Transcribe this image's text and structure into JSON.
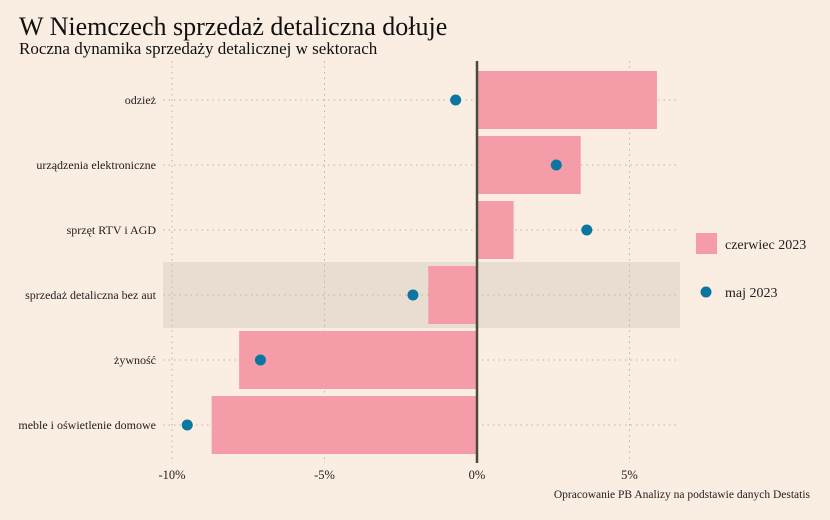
{
  "header": {
    "title": "W Niemczech sprzedaż detaliczna dołuje",
    "subtitle": "Roczna dynamika sprzedaży detalicznej w sektorach"
  },
  "source": "Opracowanie PB Analizy na podstawie danych Destatis",
  "colors": {
    "background": "#faede1",
    "bar": "#f59ca9",
    "dot": "#0b76a0",
    "highlight_band": "#e8ddd0",
    "zero_line": "#4a4a3f",
    "grid": "#bdb2a6"
  },
  "chart_data": {
    "type": "bar",
    "orientation": "horizontal",
    "title": "W Niemczech sprzedaż detaliczna dołuje",
    "subtitle": "Roczna dynamika sprzedaży detalicznej w sektorach",
    "categories": [
      "odzież",
      "urządzenia elektroniczne",
      "sprzęt RTV i AGD",
      "sprzedaż detaliczna bez aut",
      "żywność",
      "meble i oświetlenie domowe"
    ],
    "highlighted_category": "sprzedaż detaliczna bez aut",
    "series": [
      {
        "name": "czerwiec 2023",
        "mark": "bar",
        "values": [
          5.9,
          3.4,
          1.2,
          -1.6,
          -7.8,
          -8.7
        ]
      },
      {
        "name": "maj 2023",
        "mark": "dot",
        "values": [
          -0.7,
          2.6,
          3.6,
          -2.1,
          -7.1,
          -9.5
        ]
      }
    ],
    "xlabel": "",
    "ylabel": "",
    "xlim": [
      -10.3,
      6.7
    ],
    "xticks": [
      -10,
      -5,
      0,
      5
    ],
    "xtick_labels": [
      "-10%",
      "-5%",
      "0%",
      "5%"
    ],
    "grid": true,
    "legend": {
      "position": "right",
      "entries": [
        "czerwiec 2023",
        "maj 2023"
      ]
    }
  }
}
